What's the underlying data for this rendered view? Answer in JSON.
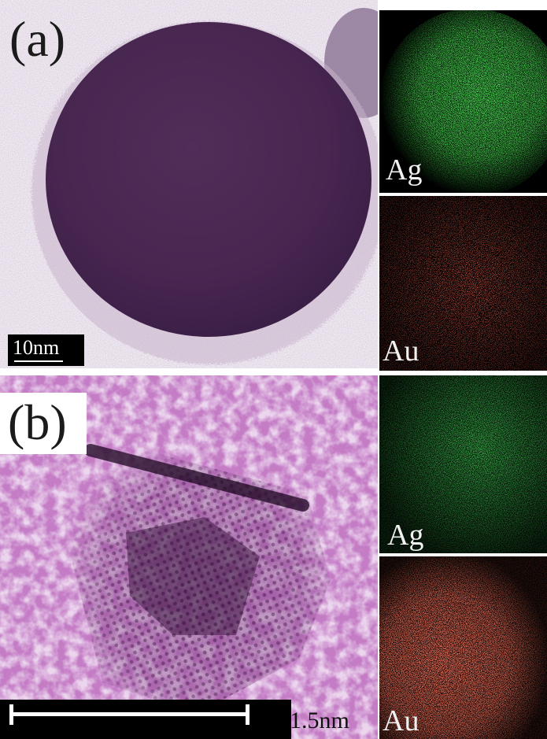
{
  "figure": {
    "panel_a": {
      "label": "(a)",
      "scale_bar": "10nm",
      "maps": [
        {
          "element": "Ag",
          "color": "#18c81c"
        },
        {
          "element": "Au",
          "color": "#d21e12"
        }
      ]
    },
    "panel_b": {
      "label": "(b)",
      "scale_bar": "1.5nm",
      "maps": [
        {
          "element": "Ag",
          "color": "#0f7a18"
        },
        {
          "element": "Au",
          "color": "#d8281a"
        }
      ]
    }
  }
}
